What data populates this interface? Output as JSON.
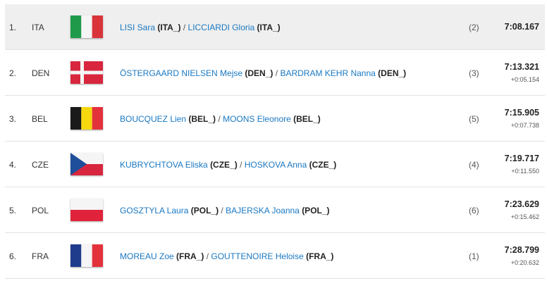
{
  "separator": "/",
  "rows": [
    {
      "rank": "1.",
      "country": "ITA",
      "athletes": [
        {
          "name": "LISI Sara",
          "team": "(ITA_)"
        },
        {
          "name": "LICCIARDI Gloria",
          "team": "(ITA_)"
        }
      ],
      "lane": "(2)",
      "time": "7:08.167"
    },
    {
      "rank": "2.",
      "country": "DEN",
      "athletes": [
        {
          "name": "ÖSTERGAARD NIELSEN Mejse",
          "team": "(DEN_)"
        },
        {
          "name": "BARDRAM KEHR Nanna",
          "team": "(DEN_)"
        }
      ],
      "lane": "(3)",
      "time": "7:13.321",
      "diff": "+0:05.154"
    },
    {
      "rank": "3.",
      "country": "BEL",
      "athletes": [
        {
          "name": "BOUCQUEZ Lien",
          "team": "(BEL_)"
        },
        {
          "name": "MOONS Eleonore",
          "team": "(BEL_)"
        }
      ],
      "lane": "(5)",
      "time": "7:15.905",
      "diff": "+0:07.738"
    },
    {
      "rank": "4.",
      "country": "CZE",
      "athletes": [
        {
          "name": "KUBRYCHTOVA Eliska",
          "team": "(CZE_)"
        },
        {
          "name": "HOSKOVA Anna",
          "team": "(CZE_)"
        }
      ],
      "lane": "(4)",
      "time": "7:19.717",
      "diff": "+0:11.550"
    },
    {
      "rank": "5.",
      "country": "POL",
      "athletes": [
        {
          "name": "GOSZTYLA Laura",
          "team": "(POL_)"
        },
        {
          "name": "BAJERSKA Joanna",
          "team": "(POL_)"
        }
      ],
      "lane": "(6)",
      "time": "7:23.629",
      "diff": "+0:15.462"
    },
    {
      "rank": "6.",
      "country": "FRA",
      "athletes": [
        {
          "name": "MOREAU Zoe",
          "team": "(FRA_)"
        },
        {
          "name": "GOUTTENOIRE Heloise",
          "team": "(FRA_)"
        }
      ],
      "lane": "(1)",
      "time": "7:28.799",
      "diff": "+0:20.632"
    }
  ]
}
